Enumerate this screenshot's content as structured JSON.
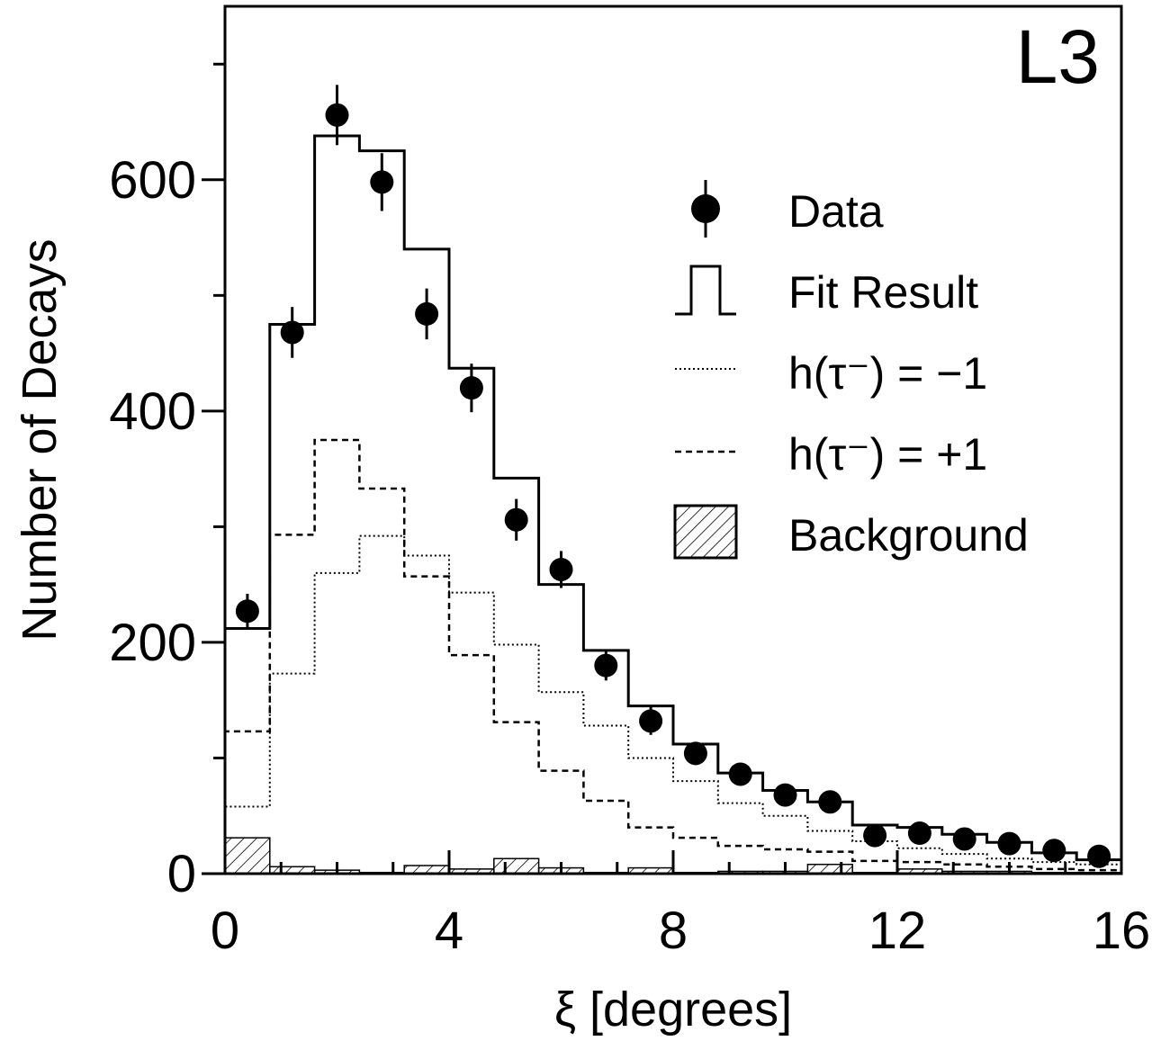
{
  "chart_data": {
    "type": "histogram",
    "annotation": "L3",
    "xlabel": "ξ  [degrees]",
    "ylabel": "Number of Decays",
    "xlim": [
      0,
      16
    ],
    "ylim": [
      0,
      750
    ],
    "x_ticks": [
      0,
      4,
      8,
      12,
      16
    ],
    "y_ticks": [
      0,
      200,
      400,
      600
    ],
    "legend_position": "top-right",
    "bin_edges": [
      0,
      0.8,
      1.6,
      2.4,
      3.2,
      4.0,
      4.8,
      5.6,
      6.4,
      7.2,
      8.0,
      8.8,
      9.6,
      10.4,
      11.2,
      12.0,
      12.8,
      13.6,
      14.4,
      15.2,
      16.0
    ],
    "series": [
      {
        "name": "Data",
        "style": "points",
        "x": [
          0.4,
          1.2,
          2.0,
          2.8,
          3.6,
          4.4,
          5.2,
          6.0,
          6.8,
          7.6,
          8.4,
          9.2,
          10.0,
          10.8,
          11.6,
          12.4,
          13.2,
          14.0,
          14.8,
          15.6
        ],
        "y": [
          227,
          468,
          656,
          598,
          484,
          420,
          306,
          263,
          180,
          132,
          104,
          86,
          68,
          62,
          33,
          35,
          30,
          26,
          20,
          15
        ],
        "yerr": [
          15,
          22,
          26,
          25,
          22,
          21,
          18,
          16,
          13,
          12,
          10,
          9,
          8,
          8,
          6,
          6,
          6,
          5,
          4,
          4
        ]
      },
      {
        "name": "Fit Result",
        "style": "solid-step",
        "values": [
          212,
          475,
          638,
          625,
          540,
          437,
          342,
          250,
          193,
          145,
          112,
          87,
          72,
          62,
          42,
          40,
          34,
          27,
          18,
          12
        ]
      },
      {
        "name": "h(τ⁻) = −1",
        "style": "dotted-step",
        "values": [
          58,
          173,
          260,
          292,
          275,
          243,
          198,
          157,
          128,
          100,
          80,
          61,
          50,
          37,
          28,
          22,
          17,
          13,
          10,
          8
        ]
      },
      {
        "name": "h(τ⁻) = +1",
        "style": "dashed-step",
        "values": [
          123,
          293,
          375,
          333,
          257,
          189,
          131,
          89,
          63,
          40,
          31,
          24,
          21,
          19,
          11,
          10,
          8,
          6,
          4,
          3
        ]
      },
      {
        "name": "Background",
        "style": "hatched",
        "values": [
          31,
          6,
          3,
          1,
          7,
          4,
          13,
          5,
          1,
          5,
          1,
          2,
          2,
          8,
          1,
          4,
          2,
          2,
          1,
          1
        ]
      }
    ]
  }
}
